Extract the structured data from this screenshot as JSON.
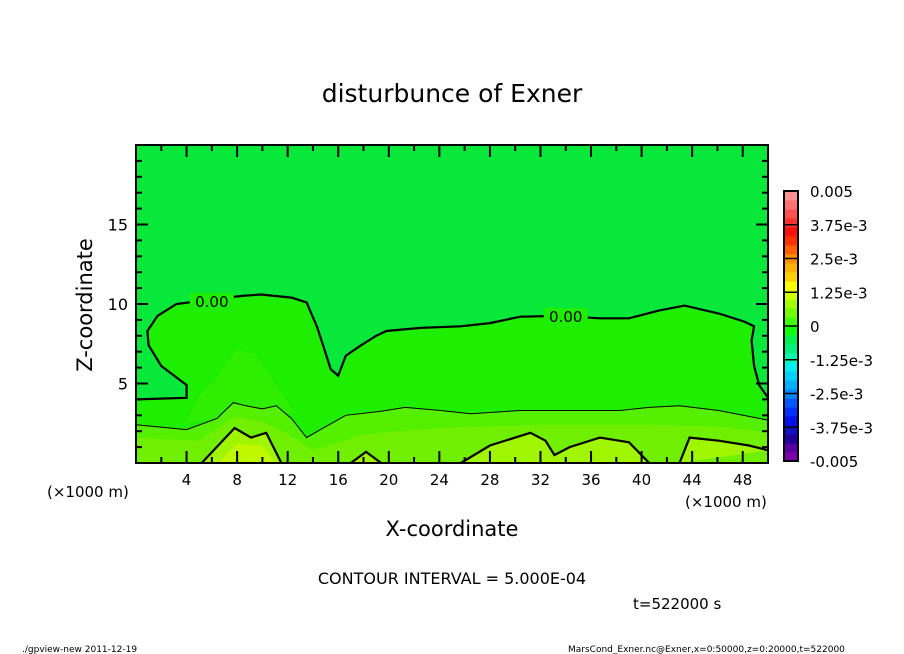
{
  "chart_data": {
    "type": "contour",
    "title": "disturbunce of Exner",
    "xlabel": "X-coordinate",
    "ylabel": "Z-coordinate",
    "x_unit_left": "(×1000 m)",
    "x_unit_right": "(×1000 m)",
    "xlim": [
      0,
      50
    ],
    "ylim": [
      0,
      20
    ],
    "xticks": [
      4,
      8,
      12,
      16,
      20,
      24,
      28,
      32,
      36,
      40,
      44,
      48
    ],
    "yticks": [
      5,
      10,
      15
    ],
    "contour_interval_text": "CONTOUR INTERVAL = 5.000E-04",
    "time_text": "t=522000 s",
    "contour_labels": [
      {
        "text": "0.00",
        "x": 6.0,
        "z": 10.2
      },
      {
        "text": "0.00",
        "x": 34.0,
        "z": 9.25
      }
    ],
    "colorbar": {
      "min": -0.005,
      "max": 0.005,
      "step": 0.0005,
      "labels": [
        "0.005",
        "3.75e-3",
        "2.5e-3",
        "1.25e-3",
        "0",
        "-1.25e-3",
        "-2.5e-3",
        "-3.75e-3",
        "-0.005"
      ],
      "label_values": [
        0.005,
        0.00375,
        0.0025,
        0.00125,
        0,
        -0.00125,
        -0.0025,
        -0.00375,
        -0.005
      ],
      "colors": [
        "#7a00a8",
        "#5a00a0",
        "#20009a",
        "#1010c0",
        "#0010e8",
        "#0030ff",
        "#0058ff",
        "#0088ff",
        "#00b0ff",
        "#00d0ff",
        "#00f0f0",
        "#00ffb0",
        "#00f080",
        "#00f050",
        "#10ff10",
        "#40ff00",
        "#70ff00",
        "#a0ff00",
        "#d0ff00",
        "#ffff00",
        "#ffd000",
        "#ffb000",
        "#ff9000",
        "#ff6000",
        "#ff3000",
        "#ff1010",
        "#ff3030",
        "#ff5050",
        "#ff7070",
        "#ff9090"
      ]
    },
    "contours": [
      {
        "level": 0.0,
        "weight": "thick",
        "points": [
          [
            0,
            4.0
          ],
          [
            4.0,
            4.1
          ],
          [
            4.0,
            4.9
          ],
          [
            2.0,
            6.1
          ],
          [
            1.0,
            7.4
          ],
          [
            0.9,
            8.3
          ],
          [
            1.7,
            9.25
          ],
          [
            3.2,
            10.0
          ],
          [
            5.2,
            10.2
          ],
          [
            8.3,
            10.5
          ],
          [
            9.9,
            10.6
          ],
          [
            12.3,
            10.4
          ],
          [
            13.5,
            10.1
          ],
          [
            14.3,
            8.6
          ],
          [
            14.8,
            7.4
          ],
          [
            15.4,
            5.9
          ],
          [
            16.0,
            5.5
          ],
          [
            16.6,
            6.75
          ],
          [
            17.8,
            7.4
          ],
          [
            19.0,
            8.0
          ],
          [
            19.8,
            8.3
          ],
          [
            22.5,
            8.5
          ],
          [
            25.7,
            8.6
          ],
          [
            28.0,
            8.8
          ],
          [
            30.4,
            9.2
          ],
          [
            33.5,
            9.25
          ],
          [
            36.7,
            9.1
          ],
          [
            39.0,
            9.1
          ],
          [
            41.4,
            9.6
          ],
          [
            43.4,
            9.9
          ],
          [
            46.1,
            9.4
          ],
          [
            48.1,
            8.9
          ],
          [
            48.9,
            8.6
          ],
          [
            48.7,
            7.7
          ],
          [
            48.9,
            6.1
          ],
          [
            49.3,
            4.9
          ],
          [
            50,
            4.1
          ]
        ]
      },
      {
        "level": 0.0005,
        "weight": "thin",
        "points": [
          [
            0,
            2.4
          ],
          [
            4.0,
            2.1
          ],
          [
            6.4,
            2.8
          ],
          [
            7.7,
            3.8
          ],
          [
            8.7,
            3.6
          ],
          [
            10.0,
            3.4
          ],
          [
            11.1,
            3.6
          ],
          [
            12.3,
            2.8
          ],
          [
            13.5,
            1.6
          ],
          [
            14.6,
            2.1
          ],
          [
            16.6,
            3.0
          ],
          [
            19.4,
            3.25
          ],
          [
            21.3,
            3.5
          ],
          [
            24.1,
            3.3
          ],
          [
            26.5,
            3.1
          ],
          [
            30.4,
            3.3
          ],
          [
            34.3,
            3.3
          ],
          [
            38.3,
            3.3
          ],
          [
            40.6,
            3.5
          ],
          [
            43.0,
            3.6
          ],
          [
            46.1,
            3.3
          ],
          [
            50,
            2.7
          ]
        ]
      },
      {
        "level": 0.001,
        "weight": "thick",
        "points": [
          [
            5.2,
            0
          ],
          [
            7.8,
            2.2
          ],
          [
            9.1,
            1.6
          ],
          [
            10.3,
            1.9
          ],
          [
            11.5,
            0
          ]
        ]
      },
      {
        "level": 0.001,
        "weight": "thick",
        "points": [
          [
            17.0,
            0
          ],
          [
            18.2,
            0.7
          ],
          [
            19.4,
            0
          ]
        ]
      },
      {
        "level": 0.001,
        "weight": "thick",
        "points": [
          [
            25.7,
            0
          ],
          [
            28.0,
            1.1
          ],
          [
            31.2,
            1.9
          ],
          [
            32.4,
            1.4
          ],
          [
            33.1,
            0.5
          ],
          [
            34.3,
            1.0
          ],
          [
            36.7,
            1.6
          ],
          [
            39.0,
            1.3
          ],
          [
            40.6,
            0
          ]
        ]
      },
      {
        "level": 0.001,
        "weight": "thick",
        "points": [
          [
            43.0,
            0
          ],
          [
            43.8,
            1.6
          ],
          [
            46.1,
            1.4
          ],
          [
            48.5,
            1.1
          ],
          [
            50,
            0.8
          ]
        ]
      }
    ]
  },
  "footer": {
    "left": "./gpview-new  2011-12-19",
    "right": "MarsCond_Exner.nc@Exner,x=0:50000,z=0:20000,t=522000"
  }
}
